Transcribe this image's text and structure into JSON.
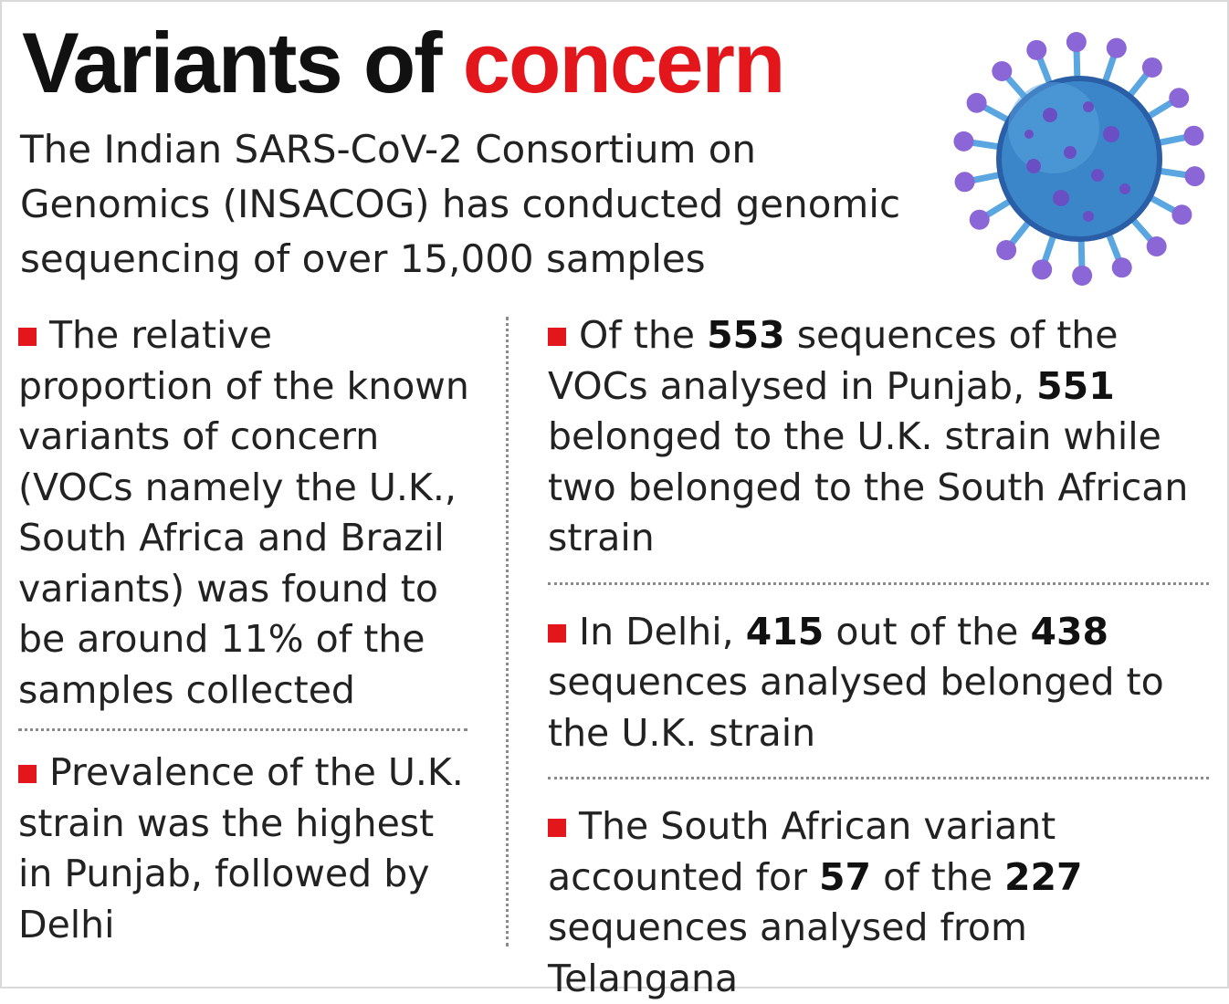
{
  "title": {
    "main": "Variants of ",
    "accent": "concern"
  },
  "intro": "The Indian SARS-CoV-2 Consortium on Genomics (INSACOG) has conducted genomic sequencing of over 15,000 samples",
  "colors": {
    "accent": "#e3161b",
    "virus_body": "#3b86c9",
    "virus_spike": "#8b66d6"
  },
  "illustration": "coronavirus-icon",
  "left_column": {
    "item1": "The relative proportion of the known variants of concern (VOCs namely the U.K., South Africa and Brazil variants) was found to be around 11% of the samples collected",
    "item2": "Prevalence of the U.K. strain was the highest in Punjab, followed by Delhi"
  },
  "right_column": {
    "item1": {
      "t1": "Of the ",
      "n1": "553",
      "t2": " sequences of the VOCs analysed in Punjab, ",
      "n2": "551",
      "t3": " belonged to the U.K. strain while two belonged to the South African strain"
    },
    "item2": {
      "t1": "In Delhi, ",
      "n1": "415",
      "t2": " out of the ",
      "n2": "438",
      "t3": " sequences analysed belonged to the U.K. strain"
    },
    "item3": {
      "t1": "The South African variant accounted for ",
      "n1": "57",
      "t2": " of the ",
      "n2": "227",
      "t3": " sequences analysed from Telangana"
    }
  }
}
